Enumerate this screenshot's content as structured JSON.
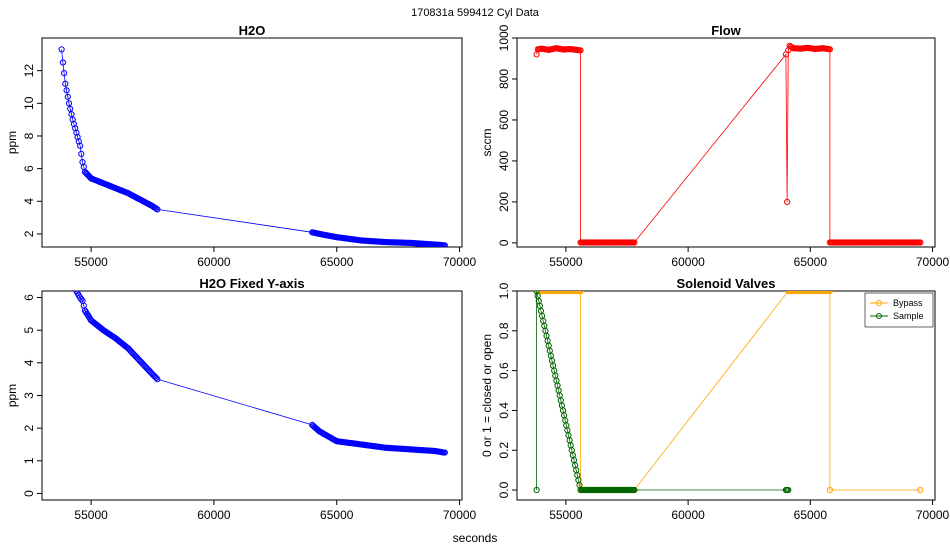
{
  "figure": {
    "suptitle": "170831a    599412    Cyl Data",
    "shared_xlabel": "seconds"
  },
  "colors": {
    "h2o": "#0000ff",
    "flow": "#ff0000",
    "bypass": "#ffa500",
    "sample": "#006400"
  },
  "legend": {
    "bypass": "Bypass",
    "sample": "Sample"
  },
  "chart_data": [
    {
      "type": "scatter",
      "title": "H2O",
      "xlabel": "",
      "ylabel": "ppm",
      "xlim": [
        53000,
        70100
      ],
      "ylim": [
        1.2,
        14.0
      ],
      "xticks": [
        55000,
        60000,
        65000,
        70000
      ],
      "yticks": [
        2,
        4,
        6,
        8,
        10,
        12
      ],
      "series": [
        {
          "x": [
            53800,
            53850,
            53950,
            54100,
            54250,
            54400,
            54550,
            54650,
            54750,
            55000,
            55500,
            56000,
            56500,
            57000,
            57500,
            57700,
            64000,
            64300,
            65000,
            66000,
            67000,
            68000,
            69000,
            69400
          ],
          "y": [
            13.3,
            12.5,
            11.2,
            10.0,
            9.0,
            8.2,
            7.4,
            6.4,
            5.8,
            5.4,
            5.1,
            4.8,
            4.5,
            4.1,
            3.7,
            3.5,
            2.1,
            2.0,
            1.8,
            1.6,
            1.5,
            1.45,
            1.35,
            1.3
          ]
        }
      ]
    },
    {
      "type": "scatter",
      "title": "Flow",
      "xlabel": "",
      "ylabel": "sccm",
      "xlim": [
        53000,
        70100
      ],
      "ylim": [
        -20,
        1000
      ],
      "xticks": [
        55000,
        60000,
        65000,
        70000
      ],
      "yticks": [
        0,
        200,
        400,
        600,
        800,
        1000
      ],
      "series": [
        {
          "x": [
            53800,
            53850,
            54000,
            54300,
            54600,
            54900,
            55200,
            55500,
            55600,
            55600,
            56000,
            56500,
            57000,
            57500,
            57800,
            64000,
            64050,
            64100,
            64150,
            64300,
            64600,
            64900,
            65200,
            65500,
            65800,
            65800,
            66500,
            67000,
            67500,
            68000,
            68500,
            69000,
            69500
          ],
          "y": [
            920,
            945,
            948,
            942,
            950,
            944,
            946,
            941,
            940,
            2,
            2,
            2,
            2,
            2,
            2,
            920,
            200,
            940,
            962,
            950,
            948,
            952,
            946,
            950,
            945,
            2,
            2,
            2,
            2,
            2,
            2,
            2,
            2
          ]
        }
      ]
    },
    {
      "type": "scatter",
      "title": "H2O Fixed Y-axis",
      "xlabel": "",
      "ylabel": "ppm",
      "xlim": [
        53000,
        70100
      ],
      "ylim": [
        -0.2,
        6.2
      ],
      "xticks": [
        55000,
        60000,
        65000,
        70000
      ],
      "yticks": [
        0,
        1,
        2,
        3,
        4,
        5,
        6
      ],
      "series": [
        {
          "x": [
            54400,
            54550,
            54650,
            54750,
            55000,
            55500,
            56000,
            56500,
            57000,
            57500,
            57700,
            64000,
            64300,
            65000,
            66000,
            67000,
            68000,
            69000,
            69400
          ],
          "y": [
            6.2,
            6.0,
            5.9,
            5.6,
            5.3,
            5.0,
            4.75,
            4.45,
            4.05,
            3.65,
            3.5,
            2.1,
            1.9,
            1.6,
            1.5,
            1.4,
            1.35,
            1.3,
            1.25
          ]
        }
      ]
    },
    {
      "type": "line",
      "title": "Solenoid Valves",
      "xlabel": "",
      "ylabel": "0 or 1 = closed or open",
      "xlim": [
        53000,
        70100
      ],
      "ylim": [
        -0.05,
        1.0
      ],
      "xticks": [
        55000,
        60000,
        65000,
        70000
      ],
      "yticks": [
        0.0,
        0.2,
        0.4,
        0.6,
        0.8,
        1.0
      ],
      "legend_position": "top-right",
      "series": [
        {
          "name": "Bypass",
          "x": [
            53800,
            55600,
            55600,
            57800,
            64100,
            65800,
            65800,
            69500
          ],
          "y": [
            1,
            1,
            0,
            0,
            1,
            1,
            0,
            0
          ]
        },
        {
          "name": "Sample",
          "x": [
            53800,
            53800,
            55600,
            57800,
            64000,
            64100
          ],
          "y": [
            0,
            1,
            0,
            0,
            0,
            0
          ]
        }
      ]
    }
  ]
}
